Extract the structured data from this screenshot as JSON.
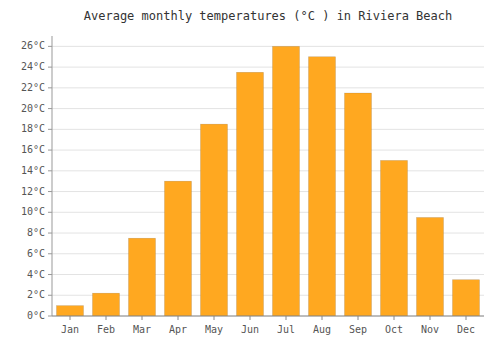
{
  "chart_data": {
    "type": "bar",
    "title": "Average monthly temperatures (°C ) in Riviera Beach",
    "categories": [
      "Jan",
      "Feb",
      "Mar",
      "Apr",
      "May",
      "Jun",
      "Jul",
      "Aug",
      "Sep",
      "Oct",
      "Nov",
      "Dec"
    ],
    "values": [
      1.0,
      2.2,
      7.5,
      13.0,
      18.5,
      23.5,
      26.0,
      25.0,
      21.5,
      15.0,
      9.5,
      3.5
    ],
    "color": "#FFA820",
    "ylim": [
      0,
      27
    ],
    "yticks": [
      {
        "value": 0,
        "label": "0°C"
      },
      {
        "value": 2,
        "label": "2°C"
      },
      {
        "value": 4,
        "label": "4°C"
      },
      {
        "value": 6,
        "label": "6°C"
      },
      {
        "value": 8,
        "label": "8°C"
      },
      {
        "value": 10,
        "label": "10°C"
      },
      {
        "value": 12,
        "label": "12°C"
      },
      {
        "value": 14,
        "label": "14°C"
      },
      {
        "value": 16,
        "label": "16°C"
      },
      {
        "value": 18,
        "label": "18°C"
      },
      {
        "value": 20,
        "label": "20°C"
      },
      {
        "value": 22,
        "label": "22°C"
      },
      {
        "value": 24,
        "label": "24°C"
      },
      {
        "value": 26,
        "label": "26°C"
      }
    ],
    "grid": true
  }
}
